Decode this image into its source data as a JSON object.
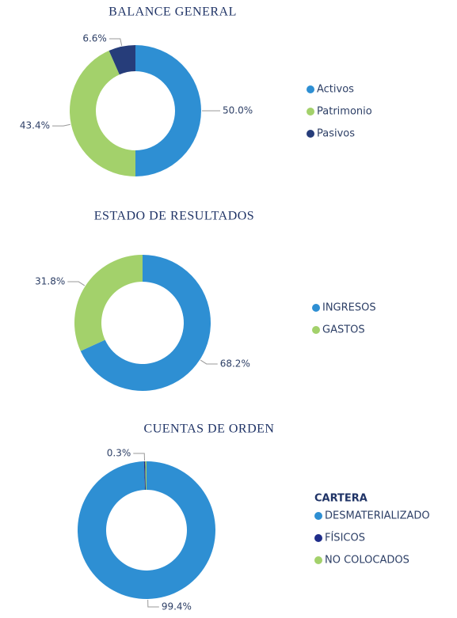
{
  "chart_data": [
    {
      "type": "donut",
      "title": "BALANCE GENERAL",
      "categories": [
        "Activos",
        "Patrimonio",
        "Pasivos"
      ],
      "values": [
        50.0,
        43.4,
        6.6
      ],
      "value_labels": [
        "50.0%",
        "43.4%",
        "6.6%"
      ],
      "colors": [
        "#2e8fd3",
        "#a3d16b",
        "#263d7a"
      ]
    },
    {
      "type": "donut",
      "title": "ESTADO DE RESULTADOS",
      "categories": [
        "INGRESOS",
        "GASTOS"
      ],
      "values": [
        68.2,
        31.8
      ],
      "value_labels": [
        "68.2%",
        "31.8%"
      ],
      "colors": [
        "#2e8fd3",
        "#a3d16b"
      ]
    },
    {
      "type": "donut",
      "title": "CUENTAS DE ORDEN",
      "legend_title": "CARTERA",
      "categories": [
        "DESMATERIALIZADO",
        "FÍSICOS",
        "NO COLOCADOS"
      ],
      "values": [
        99.4,
        0.3,
        0.3
      ],
      "value_labels": [
        "99.4%",
        "0.3%",
        null
      ],
      "colors": [
        "#2e8fd3",
        "#1f2d8a",
        "#a3d16b"
      ]
    }
  ]
}
